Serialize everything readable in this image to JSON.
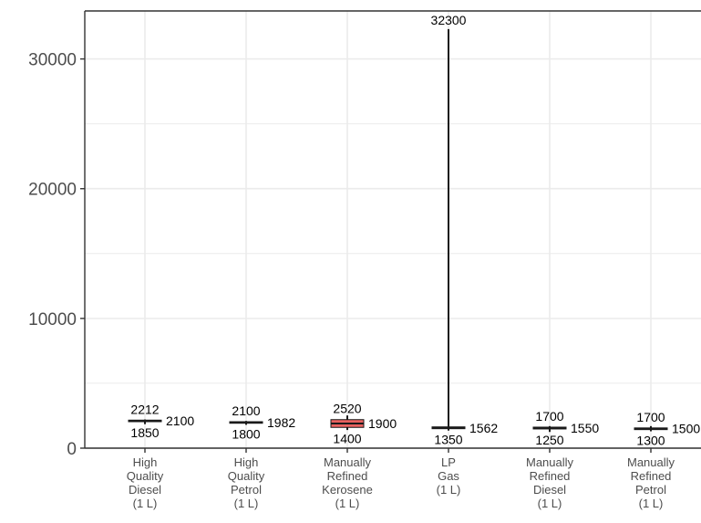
{
  "chart_data": {
    "type": "boxplot",
    "title": "",
    "xlabel": "",
    "ylabel": "",
    "ylim": [
      0,
      33700
    ],
    "y_ticks": [
      "0",
      "10000",
      "20000",
      "30000"
    ],
    "y_tick_values": [
      0,
      10000,
      20000,
      30000
    ],
    "grid": true,
    "colors": {
      "box_fill": "#e8615f",
      "line": "#1a1a1a",
      "grid": "#ebebeb",
      "axis": "#333333"
    },
    "categories": [
      {
        "lines": [
          "High",
          "Quality",
          "Diesel",
          "(1 L)"
        ],
        "min": 1850,
        "max": 2212,
        "q1": 2040,
        "q3": 2160,
        "median": 2100,
        "min_label": "1850",
        "max_label": "2212",
        "median_label": "2100"
      },
      {
        "lines": [
          "High",
          "Quality",
          "Petrol",
          "(1 L)"
        ],
        "min": 1800,
        "max": 2100,
        "q1": 1920,
        "q3": 2040,
        "median": 1982,
        "min_label": "1800",
        "max_label": "2100",
        "median_label": "1982"
      },
      {
        "lines": [
          "Manually",
          "Refined",
          "Kerosene",
          "(1 L)"
        ],
        "min": 1400,
        "max": 2520,
        "q1": 1600,
        "q3": 2200,
        "median": 1900,
        "min_label": "1400",
        "max_label": "2520",
        "median_label": "1900"
      },
      {
        "lines": [
          "LP",
          "Gas",
          "(1 L)"
        ],
        "min": 1350,
        "max": 32300,
        "q1": 1500,
        "q3": 1640,
        "median": 1562,
        "min_label": "1350",
        "max_label": "32300",
        "median_label": "1562"
      },
      {
        "lines": [
          "Manually",
          "Refined",
          "Diesel",
          "(1 L)"
        ],
        "min": 1250,
        "max": 1700,
        "q1": 1480,
        "q3": 1620,
        "median": 1550,
        "min_label": "1250",
        "max_label": "1700",
        "median_label": "1550"
      },
      {
        "lines": [
          "Manually",
          "Refined",
          "Petrol",
          "(1 L)"
        ],
        "min": 1300,
        "max": 1700,
        "q1": 1430,
        "q3": 1560,
        "median": 1500,
        "min_label": "1300",
        "max_label": "1700",
        "median_label": "1500"
      }
    ]
  }
}
